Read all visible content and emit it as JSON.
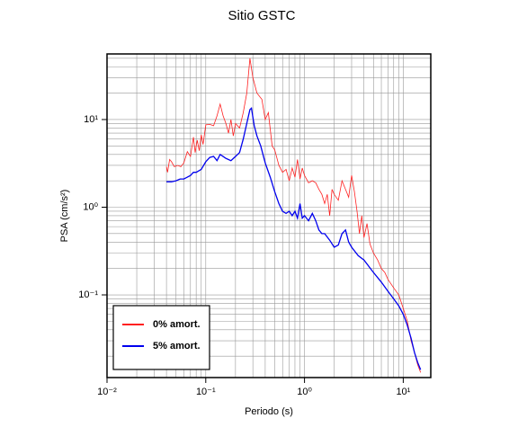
{
  "chart_data": {
    "type": "line",
    "title": "Sitio GSTC",
    "x_label": "Periodo (s)",
    "y_label": "PSA (cm/s²)",
    "log_x": true,
    "log_y": true,
    "grid": true,
    "legend": "bottom-left",
    "xlim": [
      0.01,
      19
    ],
    "ylim": [
      0.0114,
      56
    ],
    "xticks": [
      {
        "value": 0.01,
        "label": "10⁻²"
      },
      {
        "value": 0.1,
        "label": "10⁻¹"
      },
      {
        "value": 1,
        "label": "10⁰"
      },
      {
        "value": 10,
        "label": "10¹"
      }
    ],
    "yticks": [
      {
        "value": 0.1,
        "label": "10⁻¹"
      },
      {
        "value": 1,
        "label": "10⁰"
      },
      {
        "value": 10,
        "label": "10¹"
      }
    ],
    "xminorticks": [
      0.02,
      0.03,
      0.04,
      0.05,
      0.06,
      0.07,
      0.08,
      0.09,
      0.2,
      0.3,
      0.4,
      0.5,
      0.6,
      0.7,
      0.8,
      0.9,
      2,
      3,
      4,
      5,
      6,
      7,
      8,
      9
    ],
    "yminorticks": [
      0.02,
      0.03,
      0.04,
      0.05,
      0.06,
      0.07,
      0.08,
      0.09,
      0.2,
      0.3,
      0.4,
      0.5,
      0.6,
      0.7,
      0.8,
      0.9,
      2,
      3,
      4,
      5,
      6,
      7,
      8,
      9,
      20,
      30,
      40,
      50
    ],
    "series": [
      {
        "name": "0% amort.",
        "color": "#ff2020",
        "x": [
          0.04,
          0.041,
          0.043,
          0.045,
          0.048,
          0.052,
          0.056,
          0.06,
          0.065,
          0.07,
          0.075,
          0.078,
          0.082,
          0.086,
          0.09,
          0.094,
          0.1,
          0.11,
          0.12,
          0.13,
          0.14,
          0.15,
          0.16,
          0.17,
          0.18,
          0.19,
          0.2,
          0.22,
          0.24,
          0.26,
          0.28,
          0.3,
          0.33,
          0.37,
          0.4,
          0.43,
          0.47,
          0.5,
          0.55,
          0.6,
          0.65,
          0.7,
          0.75,
          0.8,
          0.85,
          0.9,
          0.95,
          1.0,
          1.1,
          1.2,
          1.3,
          1.4,
          1.5,
          1.6,
          1.7,
          1.8,
          1.9,
          2.0,
          2.2,
          2.4,
          2.6,
          2.8,
          3.0,
          3.2,
          3.4,
          3.6,
          3.8,
          4.0,
          4.3,
          4.6,
          5.0,
          5.5,
          6.0,
          6.5,
          7,
          8,
          9,
          10,
          11,
          12,
          13,
          14,
          15
        ],
        "values": [
          2.9,
          2.5,
          3.5,
          3.3,
          2.9,
          3.0,
          2.9,
          3.2,
          4.3,
          3.8,
          6.3,
          4.2,
          5.8,
          4.4,
          6.7,
          5.2,
          8.7,
          8.8,
          8.5,
          11,
          15,
          11,
          9,
          7,
          10,
          6.5,
          9,
          8,
          12,
          20,
          50,
          30,
          20,
          17,
          10,
          12,
          5,
          4.5,
          3,
          2.5,
          2.7,
          2,
          2.8,
          2.2,
          3.5,
          2.1,
          2.8,
          2.3,
          1.9,
          2.0,
          1.9,
          1.6,
          1.4,
          1.1,
          1.4,
          0.8,
          1.6,
          1.4,
          1.2,
          2.0,
          1.6,
          1.3,
          2.3,
          1.5,
          0.9,
          0.5,
          0.8,
          0.45,
          0.65,
          0.38,
          0.3,
          0.25,
          0.2,
          0.18,
          0.15,
          0.12,
          0.1,
          0.07,
          0.05,
          0.03,
          0.022,
          0.016,
          0.013
        ]
      },
      {
        "name": "5% amort.",
        "color": "#0000ee",
        "x": [
          0.04,
          0.045,
          0.05,
          0.055,
          0.06,
          0.065,
          0.07,
          0.075,
          0.08,
          0.09,
          0.1,
          0.11,
          0.12,
          0.13,
          0.14,
          0.16,
          0.18,
          0.2,
          0.22,
          0.24,
          0.26,
          0.28,
          0.29,
          0.31,
          0.33,
          0.36,
          0.4,
          0.45,
          0.5,
          0.55,
          0.6,
          0.65,
          0.7,
          0.75,
          0.8,
          0.85,
          0.9,
          0.95,
          1.0,
          1.1,
          1.2,
          1.3,
          1.4,
          1.5,
          1.6,
          1.8,
          2.0,
          2.2,
          2.4,
          2.6,
          2.8,
          3.0,
          3.5,
          4,
          5,
          6,
          7,
          8,
          9,
          10,
          11,
          12,
          13,
          14,
          15
        ],
        "values": [
          1.95,
          1.95,
          2.0,
          2.1,
          2.1,
          2.2,
          2.3,
          2.5,
          2.5,
          2.7,
          3.3,
          3.7,
          3.8,
          3.4,
          4.0,
          3.6,
          3.4,
          3.8,
          4.2,
          6,
          9,
          13,
          13.5,
          8.5,
          6.5,
          5,
          3.2,
          2.2,
          1.5,
          1.1,
          0.9,
          0.85,
          0.9,
          0.8,
          0.9,
          0.75,
          1.1,
          0.75,
          0.8,
          0.7,
          0.85,
          0.7,
          0.55,
          0.5,
          0.5,
          0.42,
          0.35,
          0.37,
          0.5,
          0.55,
          0.4,
          0.35,
          0.28,
          0.25,
          0.18,
          0.14,
          0.11,
          0.09,
          0.075,
          0.06,
          0.045,
          0.032,
          0.022,
          0.017,
          0.014
        ]
      }
    ]
  }
}
